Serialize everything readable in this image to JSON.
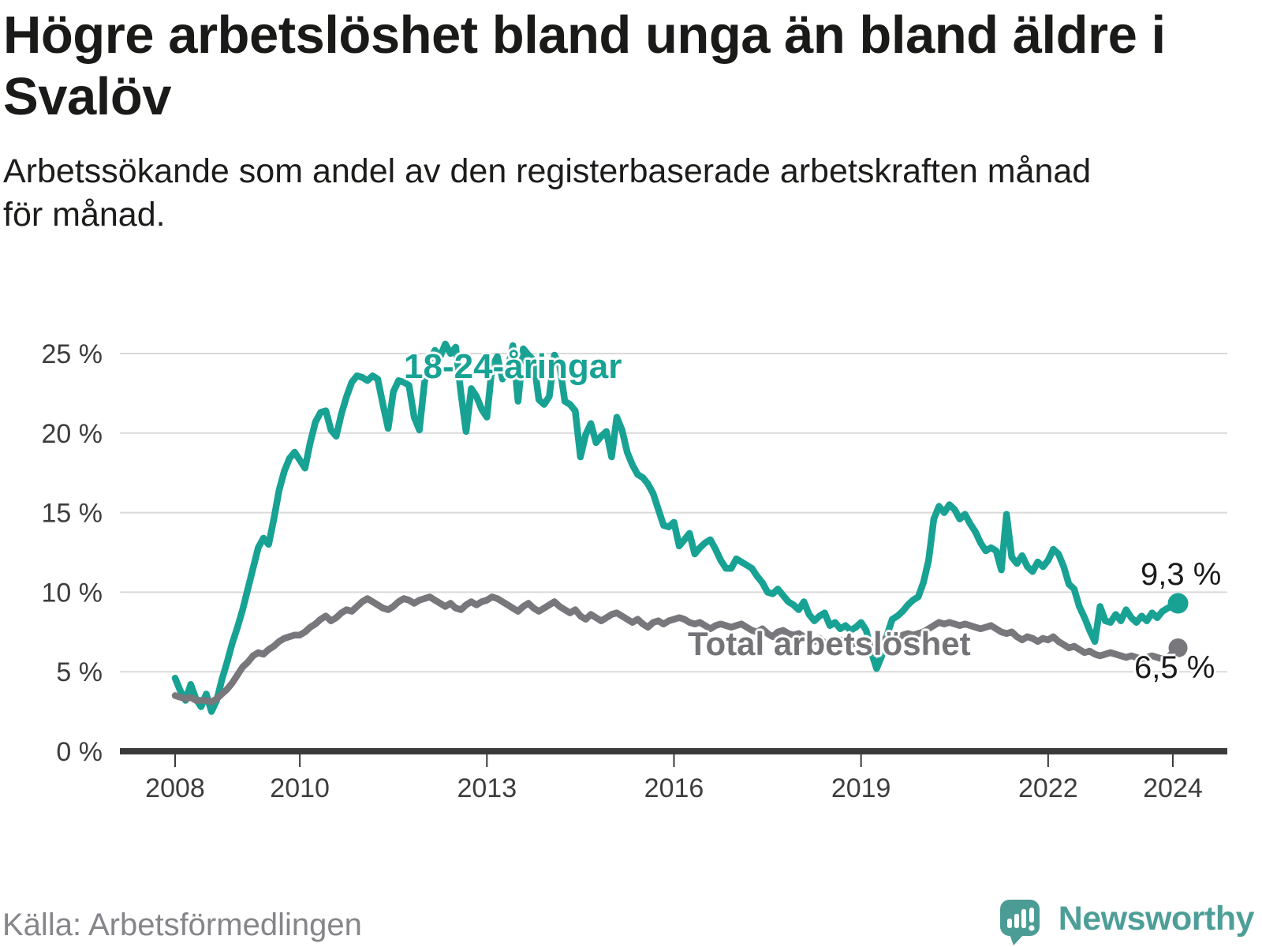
{
  "header": {
    "title_lines": [
      "Högre arbetslöshet bland unga än bland äldre i",
      "Svalöv"
    ],
    "subtitle_lines": [
      "Arbetssökande som andel av den registerbaserade arbetskraften månad",
      "för månad."
    ]
  },
  "footer": {
    "source": "Källa: Arbetsförmedlingen",
    "brand": "Newsworthy"
  },
  "colors": {
    "youth_line": "#17a294",
    "total_line": "#77777c",
    "grid": "#dadada",
    "axis": "#3a3a3a",
    "tick_text": "#3d3d3d",
    "end_label_text": "#1a1a1a",
    "brand_teal": "#4e9e98",
    "title_text": "#1a1a18"
  },
  "chart_data": {
    "type": "line",
    "title": "Högre arbetslöshet bland unga än bland äldre i Svalöv",
    "subtitle": "Arbetssökande som andel av den registerbaserade arbetskraften månad för månad.",
    "frequency": "monthly",
    "x_start": {
      "year": 2008,
      "month": 1
    },
    "x_end": {
      "year": 2024,
      "month": 2
    },
    "ylim": [
      0,
      26
    ],
    "grid": true,
    "x_ticks": [
      {
        "label": "2008",
        "year": 2008
      },
      {
        "label": "2010",
        "year": 2010
      },
      {
        "label": "2013",
        "year": 2013
      },
      {
        "label": "2016",
        "year": 2016
      },
      {
        "label": "2019",
        "year": 2019
      },
      {
        "label": "2022",
        "year": 2022
      },
      {
        "label": "2024",
        "year": 2024
      }
    ],
    "y_ticks": [
      {
        "label": "0 %",
        "value": 0
      },
      {
        "label": "5 %",
        "value": 5
      },
      {
        "label": "10 %",
        "value": 10
      },
      {
        "label": "15 %",
        "value": 15
      },
      {
        "label": "20 %",
        "value": 20
      },
      {
        "label": "25 %",
        "value": 25
      }
    ],
    "series": [
      {
        "name": "18-24-åringar",
        "color": "#17a294",
        "end_label": "9,3 %",
        "end_value": 9.3,
        "values": [
          4.6,
          3.8,
          3.2,
          4.2,
          3.3,
          2.8,
          3.6,
          2.5,
          3.2,
          4.5,
          5.6,
          6.8,
          7.8,
          8.9,
          10.2,
          11.5,
          12.8,
          13.4,
          13.0,
          14.6,
          16.4,
          17.6,
          18.4,
          18.8,
          18.3,
          17.8,
          19.4,
          20.7,
          21.3,
          21.4,
          20.2,
          19.8,
          21.2,
          22.3,
          23.2,
          23.6,
          23.5,
          23.3,
          23.6,
          23.4,
          21.8,
          20.3,
          22.6,
          23.3,
          23.2,
          23.0,
          21.0,
          20.2,
          23.2,
          24.6,
          25.2,
          24.8,
          25.6,
          25.0,
          25.4,
          22.5,
          20.1,
          22.8,
          22.3,
          21.5,
          21.0,
          24.2,
          24.8,
          23.4,
          24.0,
          25.5,
          22.0,
          25.3,
          24.9,
          24.6,
          22.1,
          21.8,
          22.3,
          24.9,
          24.3,
          22.0,
          21.8,
          21.4,
          18.5,
          19.9,
          20.6,
          19.4,
          19.8,
          20.1,
          18.5,
          21.0,
          20.2,
          18.8,
          18.0,
          17.4,
          17.2,
          16.8,
          16.2,
          15.2,
          14.2,
          14.1,
          14.4,
          12.9,
          13.3,
          13.7,
          12.4,
          12.8,
          13.1,
          13.3,
          12.7,
          12.0,
          11.5,
          11.5,
          12.1,
          11.9,
          11.7,
          11.5,
          11.0,
          10.6,
          10.0,
          9.9,
          10.2,
          9.8,
          9.4,
          9.2,
          8.9,
          9.4,
          8.6,
          8.2,
          8.5,
          8.7,
          7.9,
          8.1,
          7.7,
          7.9,
          7.6,
          7.8,
          8.1,
          7.6,
          6.2,
          5.2,
          6.0,
          7.3,
          8.3,
          8.5,
          8.8,
          9.2,
          9.5,
          9.7,
          10.6,
          12.0,
          14.6,
          15.4,
          15.0,
          15.5,
          15.2,
          14.6,
          14.9,
          14.3,
          13.8,
          13.1,
          12.6,
          12.8,
          12.6,
          11.4,
          14.9,
          12.2,
          11.8,
          12.3,
          11.6,
          11.3,
          11.9,
          11.6,
          12.0,
          12.7,
          12.4,
          11.6,
          10.5,
          10.2,
          9.1,
          8.4,
          7.6,
          6.9,
          9.1,
          8.2,
          8.1,
          8.6,
          8.2,
          8.9,
          8.4,
          8.1,
          8.5,
          8.2,
          8.7,
          8.4,
          8.8,
          9.0,
          9.15,
          9.3
        ]
      },
      {
        "name": "Total arbetslöshet",
        "color": "#77777c",
        "end_label": "6,5 %",
        "end_value": 6.5,
        "values": [
          3.5,
          3.4,
          3.3,
          3.4,
          3.2,
          3.2,
          3.2,
          3.1,
          3.3,
          3.6,
          3.9,
          4.3,
          4.8,
          5.3,
          5.6,
          6.0,
          6.2,
          6.1,
          6.4,
          6.6,
          6.9,
          7.1,
          7.2,
          7.3,
          7.3,
          7.5,
          7.8,
          8.0,
          8.3,
          8.5,
          8.2,
          8.4,
          8.7,
          8.9,
          8.8,
          9.1,
          9.4,
          9.6,
          9.4,
          9.2,
          9.0,
          8.9,
          9.1,
          9.4,
          9.6,
          9.5,
          9.3,
          9.5,
          9.6,
          9.7,
          9.5,
          9.3,
          9.1,
          9.3,
          9.0,
          8.9,
          9.2,
          9.4,
          9.2,
          9.4,
          9.5,
          9.7,
          9.6,
          9.4,
          9.2,
          9.0,
          8.8,
          9.1,
          9.3,
          9.0,
          8.8,
          9.0,
          9.2,
          9.4,
          9.1,
          8.9,
          8.7,
          8.9,
          8.5,
          8.3,
          8.6,
          8.4,
          8.2,
          8.4,
          8.6,
          8.7,
          8.5,
          8.3,
          8.1,
          8.3,
          8.0,
          7.8,
          8.1,
          8.2,
          8.0,
          8.2,
          8.3,
          8.4,
          8.3,
          8.1,
          8.0,
          8.1,
          7.9,
          7.7,
          7.9,
          8.0,
          7.9,
          7.8,
          7.9,
          8.0,
          7.8,
          7.6,
          7.5,
          7.7,
          7.4,
          7.2,
          7.5,
          7.6,
          7.4,
          7.3,
          7.4,
          7.2,
          7.0,
          6.9,
          7.1,
          6.8,
          6.6,
          6.8,
          7.0,
          6.9,
          6.7,
          6.8,
          7.0,
          6.9,
          6.7,
          6.8,
          7.0,
          7.1,
          7.2,
          7.1,
          7.3,
          7.4,
          7.3,
          7.4,
          7.5,
          7.7,
          7.9,
          8.1,
          8.0,
          8.1,
          8.0,
          7.9,
          8.0,
          7.9,
          7.8,
          7.7,
          7.8,
          7.9,
          7.7,
          7.5,
          7.4,
          7.5,
          7.2,
          7.0,
          7.2,
          7.1,
          6.9,
          7.1,
          7.0,
          7.2,
          6.9,
          6.7,
          6.5,
          6.6,
          6.4,
          6.2,
          6.3,
          6.1,
          6.0,
          6.1,
          6.2,
          6.1,
          6.0,
          5.9,
          6.0,
          5.9,
          5.8,
          5.9,
          6.0,
          5.9,
          5.8,
          5.9,
          6.2,
          6.5
        ]
      }
    ],
    "legend_position": "inline-labels"
  }
}
